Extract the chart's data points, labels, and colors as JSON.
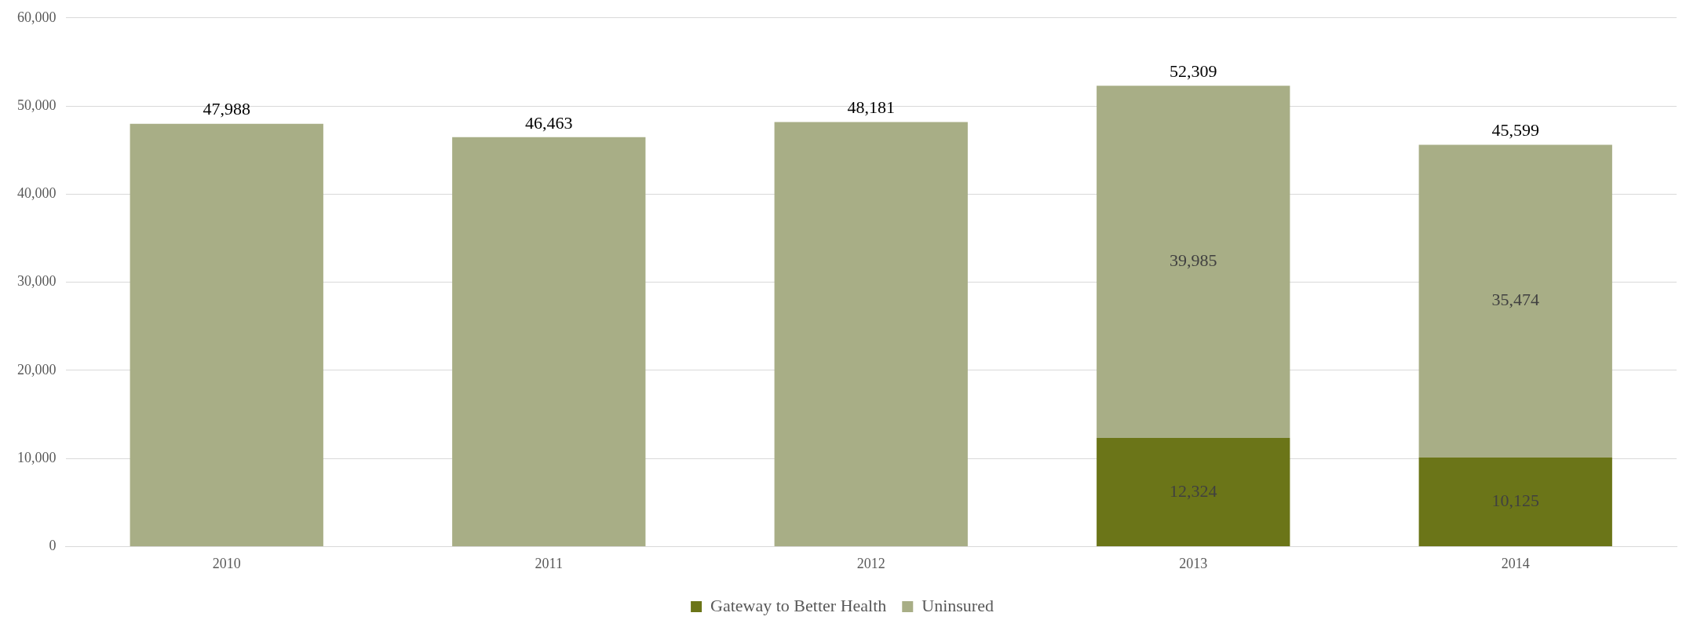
{
  "chart_data": {
    "type": "bar",
    "stacked": true,
    "categories": [
      "2010",
      "2011",
      "2012",
      "2013",
      "2014"
    ],
    "series": [
      {
        "name": "Gateway to Better Health",
        "color": "#6b7518",
        "values": [
          null,
          null,
          null,
          12324,
          10125
        ],
        "value_labels": [
          null,
          null,
          null,
          "12,324",
          "10,125"
        ]
      },
      {
        "name": "Uninsured",
        "color": "#a8ae86",
        "values": [
          47988,
          46463,
          48181,
          39985,
          35474
        ],
        "value_labels": [
          null,
          null,
          null,
          "39,985",
          "35,474"
        ]
      }
    ],
    "totals": [
      "47,988",
      "46,463",
      "48,181",
      "52,309",
      "45,599"
    ],
    "ylim": [
      0,
      60000
    ],
    "yticks": [
      0,
      {
        "value": 10000,
        "label": "10,000"
      },
      {
        "value": 20000,
        "label": "20,000"
      },
      {
        "value": 30000,
        "label": "30,000"
      },
      {
        "value": 40000,
        "label": "40,000"
      },
      {
        "value": 50000,
        "label": "50,000"
      },
      {
        "value": 60000,
        "label": "60,000"
      }
    ],
    "grid": "y",
    "legend": "bottom"
  }
}
